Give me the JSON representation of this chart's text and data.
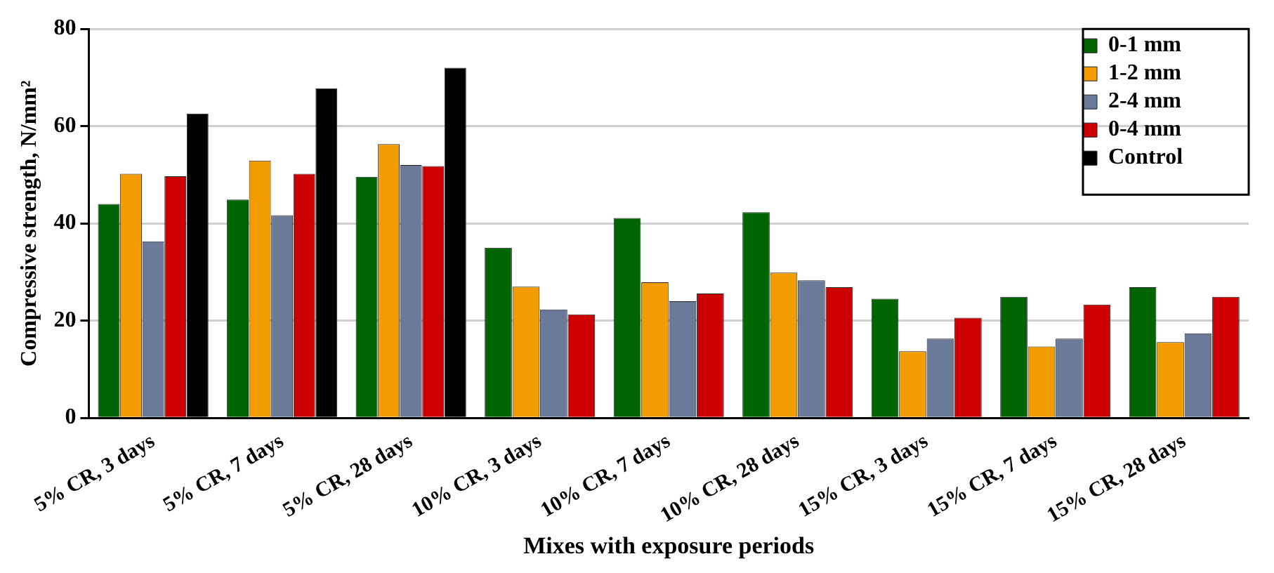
{
  "chart_data": {
    "type": "bar",
    "xlabel": "Mixes with exposure periods",
    "ylabel": "Compressive strength, N/mm²",
    "categories": [
      "5% CR, 3 days",
      "5% CR, 7 days",
      "5% CR, 28 days",
      "10% CR, 3 days",
      "10% CR, 7 days",
      "10% CR, 28 days",
      "15% CR, 3 days",
      "15% CR, 7 days",
      "15% CR, 28 days"
    ],
    "series": [
      {
        "name": "0-1 mm",
        "color": "#006400",
        "values": [
          44,
          44.9,
          49.6,
          35,
          41.1,
          42.3,
          24.5,
          24.9,
          26.9
        ]
      },
      {
        "name": "1-2 mm",
        "color": "#f39c00",
        "values": [
          50.2,
          52.9,
          56.3,
          27,
          27.9,
          29.9,
          13.7,
          14.7,
          15.6
        ]
      },
      {
        "name": "2-4 mm",
        "color": "#6b7a99",
        "values": [
          36.3,
          41.7,
          52,
          22.3,
          24,
          28.3,
          16.3,
          16.3,
          17.4
        ]
      },
      {
        "name": "0-4 mm",
        "color": "#cc0000",
        "values": [
          49.7,
          50.2,
          51.8,
          21.3,
          25.6,
          26.9,
          20.6,
          23.3,
          24.9
        ]
      },
      {
        "name": "Control",
        "color": "#000000",
        "values": [
          62.6,
          67.8,
          72,
          null,
          null,
          null,
          null,
          null,
          null
        ]
      }
    ],
    "ylim": [
      0,
      80
    ],
    "yticks": [
      0,
      20,
      40,
      60,
      80
    ],
    "grid": "y",
    "legend": "top right"
  }
}
